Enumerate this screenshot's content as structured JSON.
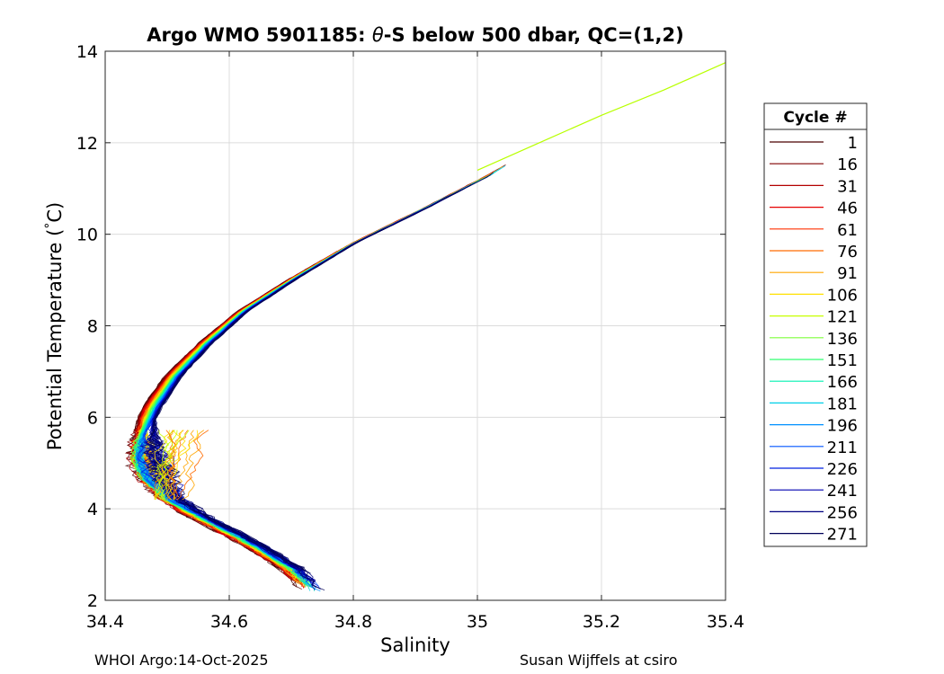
{
  "chart_data": {
    "type": "line",
    "title_prefix": "Argo WMO 5901185: ",
    "title_theta": "θ",
    "title_suffix": "-S below 500 dbar,  QC=(1,2)",
    "xlabel": "Salinity",
    "ylabel": "Potential Temperature (",
    "ylabel_degree": "°",
    "ylabel_unit": "C)",
    "xlim": [
      34.4,
      35.4
    ],
    "ylim": [
      2,
      14
    ],
    "grid": true,
    "x_ticks": [
      {
        "value": 34.4,
        "label": "34.4"
      },
      {
        "value": 34.6,
        "label": "34.6"
      },
      {
        "value": 34.8,
        "label": "34.8"
      },
      {
        "value": 35.0,
        "label": "35"
      },
      {
        "value": 35.2,
        "label": "35.2"
      },
      {
        "value": 35.4,
        "label": "35.4"
      }
    ],
    "y_ticks": [
      {
        "value": 2,
        "label": "2"
      },
      {
        "value": 4,
        "label": "4"
      },
      {
        "value": 6,
        "label": "6"
      },
      {
        "value": 8,
        "label": "8"
      },
      {
        "value": 10,
        "label": "10"
      },
      {
        "value": 12,
        "label": "12"
      },
      {
        "value": 14,
        "label": "14"
      }
    ],
    "legend": {
      "title": "Cycle #",
      "placement": "outside-right",
      "entries": [
        {
          "label": "1",
          "color": "#4a0000"
        },
        {
          "label": "16",
          "color": "#800000"
        },
        {
          "label": "31",
          "color": "#b30000"
        },
        {
          "label": "46",
          "color": "#e60000"
        },
        {
          "label": "61",
          "color": "#ff3000"
        },
        {
          "label": "76",
          "color": "#ff6a00"
        },
        {
          "label": "91",
          "color": "#ffa500"
        },
        {
          "label": "106",
          "color": "#ffe000"
        },
        {
          "label": "121",
          "color": "#c8ff00"
        },
        {
          "label": "136",
          "color": "#7dff3a"
        },
        {
          "label": "151",
          "color": "#30ff70"
        },
        {
          "label": "166",
          "color": "#00f0b0"
        },
        {
          "label": "181",
          "color": "#00d0e8"
        },
        {
          "label": "196",
          "color": "#0090ff"
        },
        {
          "label": "211",
          "color": "#0055ff"
        },
        {
          "label": "226",
          "color": "#0020e0"
        },
        {
          "label": "241",
          "color": "#0000b0"
        },
        {
          "label": "256",
          "color": "#000080"
        },
        {
          "label": "271",
          "color": "#000058"
        }
      ]
    },
    "series_mean": [
      {
        "s": 34.735,
        "t": 2.2
      },
      {
        "s": 34.7,
        "t": 2.7
      },
      {
        "s": 34.64,
        "t": 3.2
      },
      {
        "s": 34.57,
        "t": 3.7
      },
      {
        "s": 34.5,
        "t": 4.2
      },
      {
        "s": 34.46,
        "t": 4.7
      },
      {
        "s": 34.45,
        "t": 5.1
      },
      {
        "s": 34.455,
        "t": 5.6
      },
      {
        "s": 34.475,
        "t": 6.2
      },
      {
        "s": 34.51,
        "t": 6.9
      },
      {
        "s": 34.56,
        "t": 7.6
      },
      {
        "s": 34.62,
        "t": 8.3
      },
      {
        "s": 34.7,
        "t": 9.0
      },
      {
        "s": 34.8,
        "t": 9.8
      },
      {
        "s": 34.92,
        "t": 10.6
      },
      {
        "s": 35.02,
        "t": 11.3
      },
      {
        "s": 35.08,
        "t": 11.8
      }
    ],
    "series_extension": [
      {
        "s": 35.0,
        "t": 11.4
      },
      {
        "s": 35.1,
        "t": 12.0
      },
      {
        "s": 35.2,
        "t": 12.6
      },
      {
        "s": 35.3,
        "t": 13.15
      },
      {
        "s": 35.4,
        "t": 13.75
      }
    ],
    "eddy_cluster": {
      "s_range": [
        34.48,
        34.62
      ],
      "t_range": [
        4.2,
        5.8
      ]
    }
  },
  "footer": {
    "left": "WHOI Argo:14-Oct-2025",
    "right": "Susan Wijffels at csiro"
  }
}
